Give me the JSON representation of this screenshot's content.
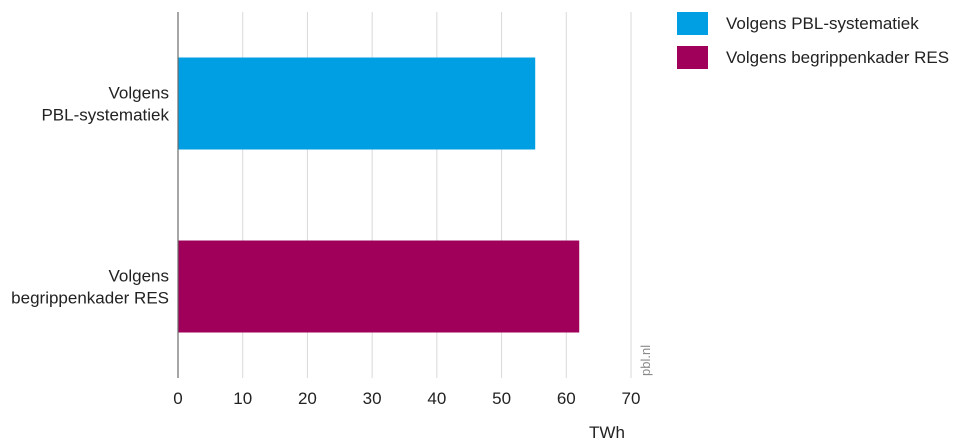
{
  "chart_data": {
    "type": "bar",
    "orientation": "horizontal",
    "categories": [
      [
        "Volgens",
        "PBL-systematiek"
      ],
      [
        "Volgens",
        "begrippenkader RES"
      ]
    ],
    "series": [
      {
        "name": "Volgens PBL-systematiek",
        "category_index": 0,
        "value": 55.2,
        "color": "#009fe3"
      },
      {
        "name": "Volgens begrippenkader RES",
        "category_index": 1,
        "value": 62.0,
        "color": "#a0005a"
      }
    ],
    "xlabel": "TWh",
    "xlim": [
      0,
      70
    ],
    "xticks": [
      0,
      10,
      20,
      30,
      40,
      50,
      60,
      70
    ],
    "grid": true,
    "legend_position": "top-right",
    "watermark": "pbl.nl"
  }
}
